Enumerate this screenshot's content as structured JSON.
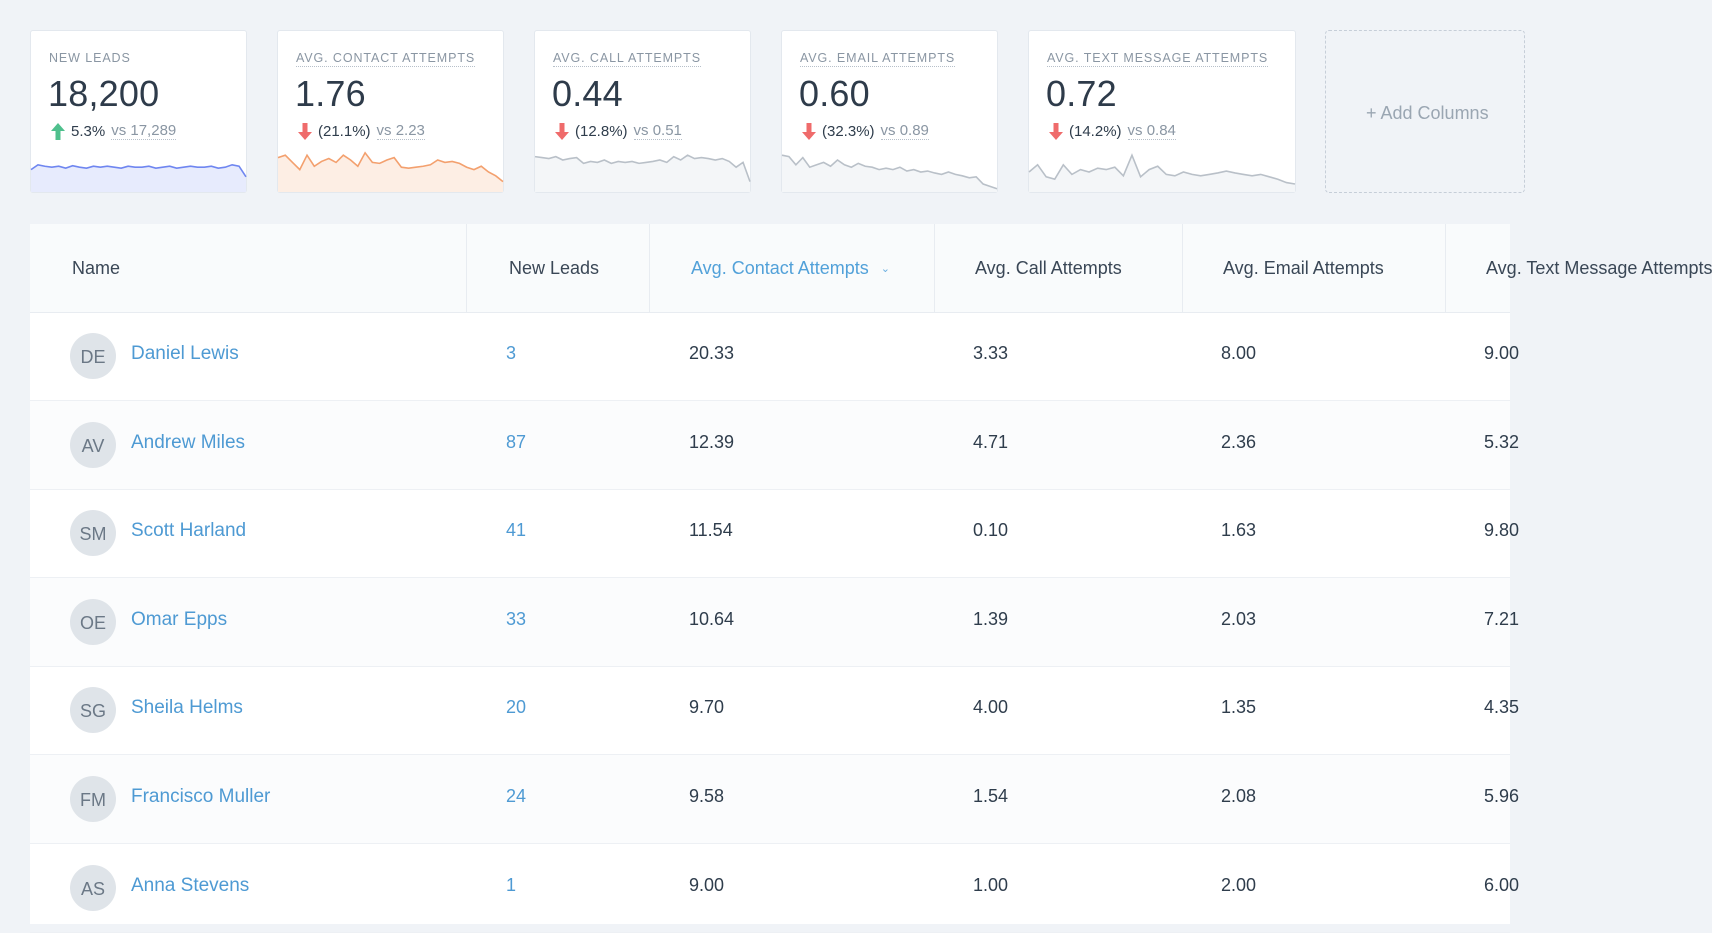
{
  "metrics": [
    {
      "label": "NEW LEADS",
      "value": "18,200",
      "direction": "up",
      "change": "5.3%",
      "vs": "vs 17,289",
      "color": "#6f86f0",
      "fill": "#e7ebfd",
      "spark": [
        0.55,
        0.65,
        0.62,
        0.6,
        0.62,
        0.58,
        0.63,
        0.6,
        0.58,
        0.62,
        0.6,
        0.62,
        0.6,
        0.58,
        0.62,
        0.6,
        0.6,
        0.62,
        0.58,
        0.6,
        0.62,
        0.58,
        0.6,
        0.62,
        0.6,
        0.6,
        0.62,
        0.58,
        0.6,
        0.65,
        0.62,
        0.4
      ]
    },
    {
      "label": "AVG. CONTACT ATTEMPTS",
      "value": "1.76",
      "direction": "down",
      "change": "(21.1%)",
      "vs": "vs 2.23",
      "color": "#f3a06e",
      "fill": "#fdeee4",
      "spark": [
        0.8,
        0.85,
        0.7,
        0.55,
        0.85,
        0.62,
        0.72,
        0.78,
        0.7,
        0.85,
        0.75,
        0.62,
        0.9,
        0.7,
        0.68,
        0.75,
        0.8,
        0.6,
        0.58,
        0.6,
        0.62,
        0.65,
        0.75,
        0.7,
        0.72,
        0.68,
        0.6,
        0.55,
        0.62,
        0.5,
        0.42,
        0.3
      ]
    },
    {
      "label": "AVG. CALL ATTEMPTS",
      "value": "0.44",
      "direction": "down",
      "change": "(12.8%)",
      "vs": "vs 0.51",
      "color": "#b9c0c8",
      "fill": "#f4f6f8",
      "spark": [
        0.82,
        0.8,
        0.78,
        0.82,
        0.75,
        0.78,
        0.8,
        0.68,
        0.72,
        0.7,
        0.75,
        0.68,
        0.72,
        0.7,
        0.72,
        0.68,
        0.7,
        0.72,
        0.75,
        0.7,
        0.82,
        0.75,
        0.85,
        0.78,
        0.8,
        0.78,
        0.75,
        0.78,
        0.72,
        0.6,
        0.7,
        0.3
      ]
    },
    {
      "label": "AVG. EMAIL ATTEMPTS",
      "value": "0.60",
      "direction": "down",
      "change": "(32.3%)",
      "vs": "vs 0.89",
      "color": "#b9c0c8",
      "fill": "#f4f6f8",
      "spark": [
        0.85,
        0.82,
        0.65,
        0.8,
        0.6,
        0.65,
        0.7,
        0.62,
        0.75,
        0.65,
        0.6,
        0.68,
        0.62,
        0.6,
        0.55,
        0.58,
        0.55,
        0.6,
        0.52,
        0.55,
        0.5,
        0.52,
        0.48,
        0.45,
        0.5,
        0.45,
        0.42,
        0.38,
        0.4,
        0.25,
        0.2,
        0.15
      ]
    },
    {
      "label": "AVG. TEXT MESSAGE ATTEMPTS",
      "value": "0.72",
      "direction": "down",
      "change": "(14.2%)",
      "vs": "vs 0.84",
      "color": "#b9c0c8",
      "fill": "#f4f6f8",
      "spark": [
        0.5,
        0.65,
        0.4,
        0.35,
        0.65,
        0.45,
        0.55,
        0.5,
        0.58,
        0.55,
        0.6,
        0.42,
        0.85,
        0.4,
        0.55,
        0.62,
        0.45,
        0.42,
        0.5,
        0.45,
        0.42,
        0.45,
        0.48,
        0.52,
        0.48,
        0.45,
        0.42,
        0.45,
        0.4,
        0.35,
        0.28,
        0.25
      ]
    }
  ],
  "add_columns_label": "+ Add Columns",
  "columns": [
    "Name",
    "New Leads",
    "Avg. Contact Attempts",
    "Avg. Call Attempts",
    "Avg. Email Attempts",
    "Avg. Text Message Attempts"
  ],
  "rows": [
    {
      "initials": "DE",
      "name": "Daniel Lewis",
      "new_leads": "3",
      "contact": "20.33",
      "call": "3.33",
      "email": "8.00",
      "text": "9.00"
    },
    {
      "initials": "AV",
      "name": "Andrew Miles",
      "new_leads": "87",
      "contact": "12.39",
      "call": "4.71",
      "email": "2.36",
      "text": "5.32"
    },
    {
      "initials": "SM",
      "name": "Scott Harland",
      "new_leads": "41",
      "contact": "11.54",
      "call": "0.10",
      "email": "1.63",
      "text": "9.80"
    },
    {
      "initials": "OE",
      "name": "Omar Epps",
      "new_leads": "33",
      "contact": "10.64",
      "call": "1.39",
      "email": "2.03",
      "text": "7.21"
    },
    {
      "initials": "SG",
      "name": "Sheila Helms",
      "new_leads": "20",
      "contact": "9.70",
      "call": "4.00",
      "email": "1.35",
      "text": "4.35"
    },
    {
      "initials": "FM",
      "name": "Francisco Muller",
      "new_leads": "24",
      "contact": "9.58",
      "call": "1.54",
      "email": "2.08",
      "text": "5.96"
    },
    {
      "initials": "AS",
      "name": "Anna Stevens",
      "new_leads": "1",
      "contact": "9.00",
      "call": "1.00",
      "email": "2.00",
      "text": "6.00"
    }
  ]
}
